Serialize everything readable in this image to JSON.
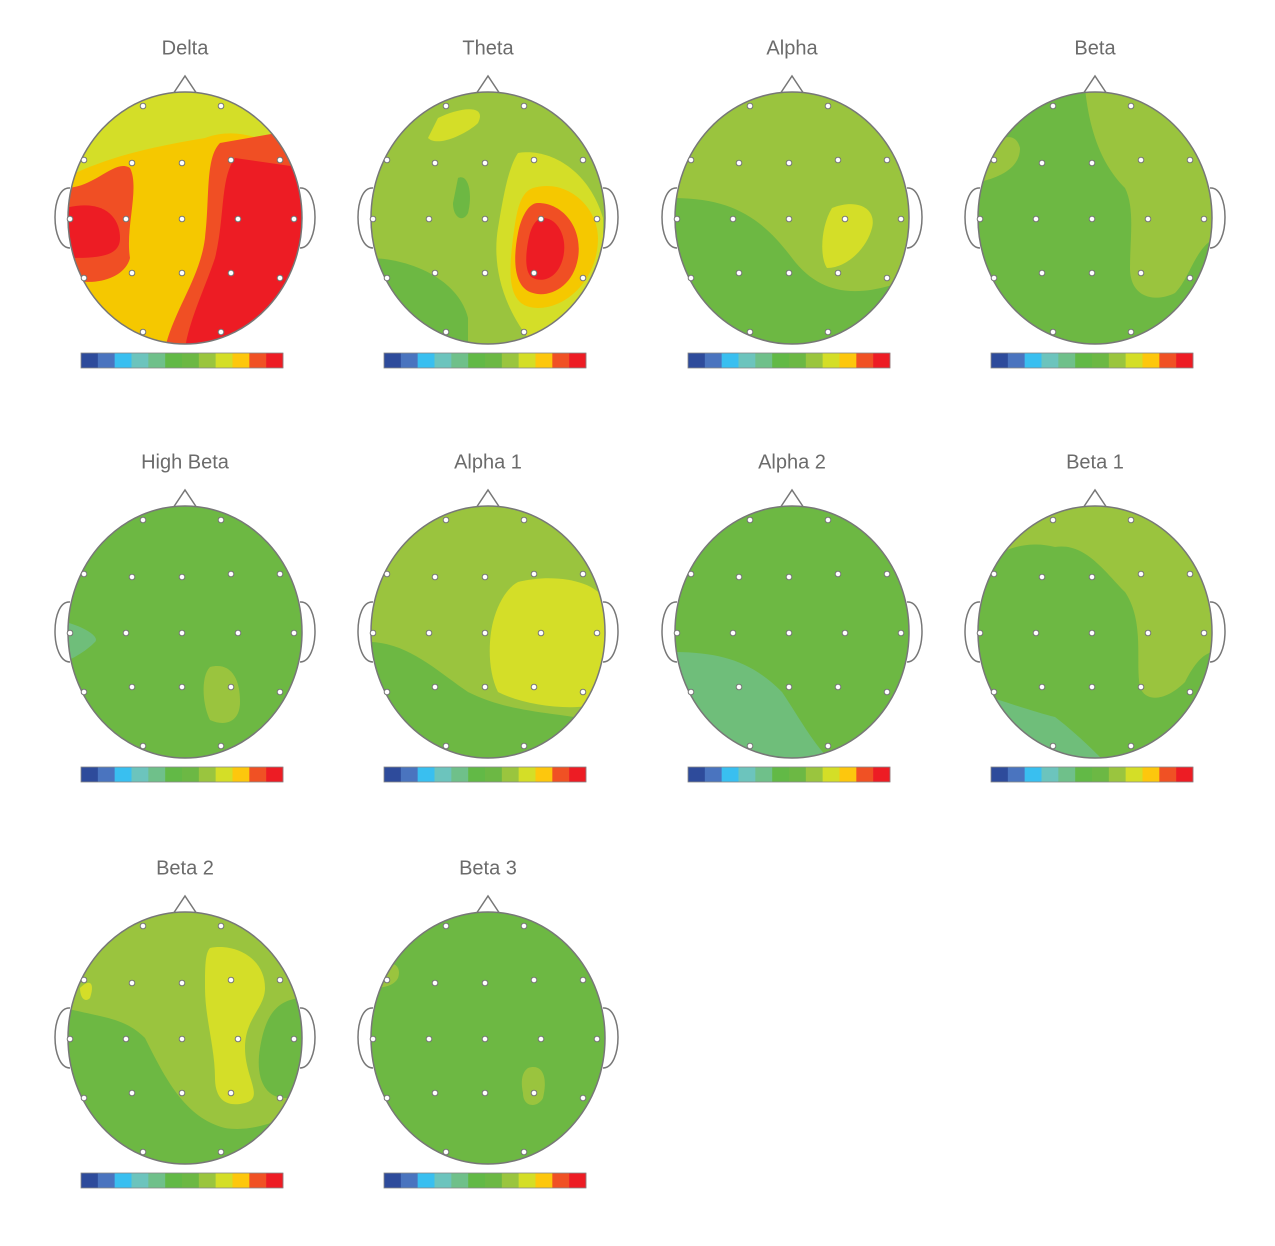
{
  "titles": [
    "Delta",
    "Theta",
    "Alpha",
    "Beta",
    "High Beta",
    "Alpha 1",
    "Alpha 2",
    "Beta 1",
    "Beta 2",
    "Beta 3"
  ],
  "colorbar": [
    "#2e4b9b",
    "#4a74bf",
    "#39bff0",
    "#6cc4bd",
    "#6fc08a",
    "#62b946",
    "#6cb844",
    "#9ac53e",
    "#d4de27",
    "#fdc70d",
    "#f05124",
    "#ed1c24"
  ]
}
